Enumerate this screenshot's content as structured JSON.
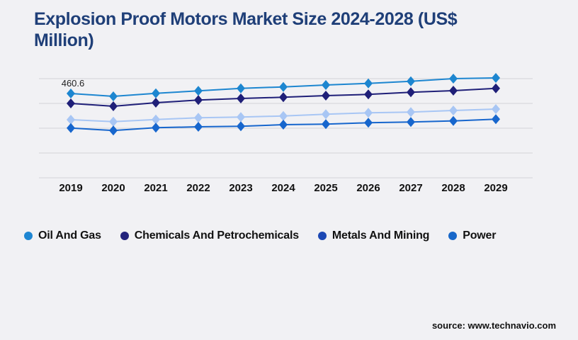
{
  "page": {
    "title": "Explosion Proof Motors Market Size 2024-2028 (US$ Million)",
    "source": "source: www.technavio.com",
    "background_color": "#f1f1f4",
    "title_color": "#1f3f78",
    "gridline_color": "#d3d3d7"
  },
  "chart_data": {
    "type": "line",
    "title": "Explosion Proof Motors Market Size 2024-2028 (US$ Million)",
    "x": [
      "2019",
      "2020",
      "2021",
      "2022",
      "2023",
      "2024",
      "2025",
      "2026",
      "2027",
      "2028",
      "2029"
    ],
    "xlabel": "",
    "ylabel": "",
    "ylim": [
      0,
      560
    ],
    "grid": "horizontal",
    "y_axis_tick_labels_visible": false,
    "legend_position": "bottom",
    "marker": "diamond",
    "annotation": {
      "text": "460.6",
      "series": "Oil And Gas",
      "x": "2019",
      "value": 460.6
    },
    "series": [
      {
        "name": "Oil And Gas",
        "line_color": "#1d86d0",
        "legend_color": "#1e86d2",
        "values": [
          460.6,
          445.0,
          461.7,
          474.8,
          488.8,
          496.5,
          507.0,
          515.9,
          527.5,
          541.8,
          545.7
        ]
      },
      {
        "name": "Chemicals And Petrochemicals",
        "line_color": "#1f1f78",
        "legend_color": "#23237c",
        "values": [
          406.4,
          390.9,
          410.2,
          424.6,
          433.4,
          440.0,
          449.0,
          455.4,
          467.0,
          476.1,
          488.8
        ]
      },
      {
        "name": "Metals And Mining",
        "line_color": "#a8c6f4",
        "legend_color": "#1c48b4",
        "values": [
          317.3,
          306.9,
          318.5,
          327.8,
          331.6,
          337.8,
          347.1,
          354.8,
          358.7,
          367.6,
          375.4
        ]
      },
      {
        "name": "Power",
        "line_color": "#1766cd",
        "legend_color": "#1767c9",
        "values": [
          272.1,
          258.1,
          273.6,
          278.6,
          281.3,
          290.3,
          293.0,
          300.7,
          304.6,
          310.8,
          320.1
        ]
      }
    ]
  }
}
